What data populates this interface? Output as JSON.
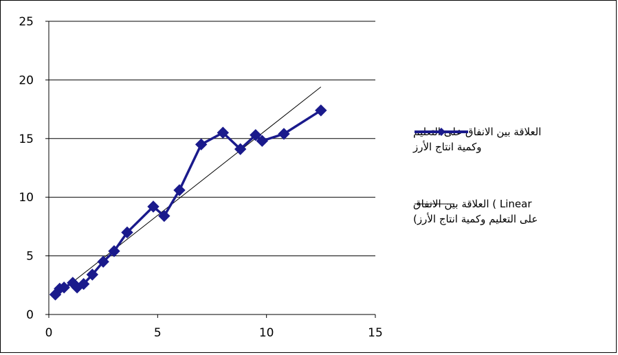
{
  "chart_data": {
    "type": "scatter",
    "title": "",
    "xlabel": "",
    "ylabel": "",
    "xlim": [
      0,
      15
    ],
    "ylim": [
      0,
      25
    ],
    "x_ticks": [
      "0",
      "5",
      "10",
      "15"
    ],
    "y_ticks": [
      "0",
      "5",
      "10",
      "15",
      "20",
      "25"
    ],
    "grid": "horizontal",
    "legend_position": "right",
    "series": [
      {
        "name": "العلاقة بين الانفاق على التعليم وكمية انتاج الأرز",
        "style": "line-with-diamond-markers",
        "color": "#1a1a8c",
        "x": [
          0.3,
          0.5,
          0.7,
          1.1,
          1.3,
          1.6,
          2.0,
          2.5,
          3.0,
          3.6,
          4.8,
          5.3,
          6.0,
          7.0,
          8.0,
          8.8,
          9.5,
          9.8,
          10.8,
          12.5
        ],
        "y": [
          1.7,
          2.2,
          2.3,
          2.7,
          2.3,
          2.6,
          3.4,
          4.5,
          5.4,
          7.0,
          9.2,
          8.4,
          10.6,
          14.5,
          15.5,
          14.1,
          15.3,
          14.8,
          15.4,
          17.4
        ]
      },
      {
        "name": "Linear (العلاقة بين الانفاق على التعليم وكمية انتاج الأرز)",
        "style": "trendline",
        "color": "#000000",
        "x": [
          0.3,
          12.5
        ],
        "y": [
          1.6,
          19.4
        ]
      }
    ]
  },
  "legend": {
    "series1_line1": "العلاقة بين الانفاق على التعليم",
    "series1_line2": "وكمية انتاج الأرز",
    "series2_line1": "Linear ) العلاقة بين الانفاق",
    "series2_line2": "على التعليم وكمية انتاج الأرز)"
  }
}
